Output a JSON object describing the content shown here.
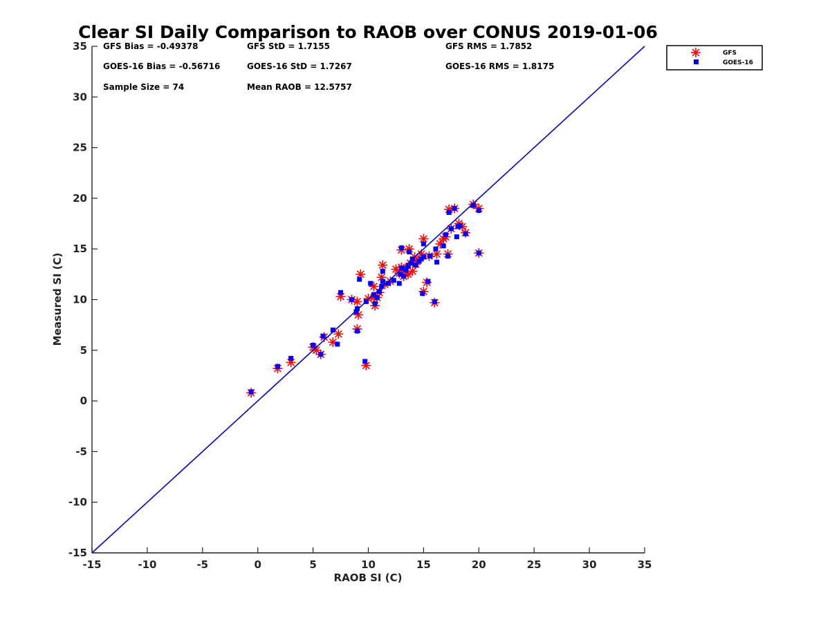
{
  "chart_data": {
    "type": "scatter",
    "title": "Clear SI Daily Comparison to RAOB over CONUS 2019-01-06",
    "xlabel": "RAOB SI (C)",
    "ylabel": "Measured SI (C)",
    "xlim": [
      -15,
      35
    ],
    "ylim": [
      -15,
      35
    ],
    "xticks": [
      "-15",
      "-10",
      "-5",
      "0",
      "5",
      "10",
      "15",
      "20",
      "25",
      "30",
      "35"
    ],
    "yticks": [
      "-15",
      "-10",
      "-5",
      "0",
      "5",
      "10",
      "15",
      "20",
      "25",
      "30",
      "35"
    ],
    "grid": false,
    "legend_position": "outside-top-right",
    "reference_line": {
      "name": "1:1 line",
      "x": [
        -15,
        35
      ],
      "y": [
        -15,
        35
      ],
      "color": "#0000cc"
    },
    "stats": [
      "GFS Bias = -0.49378",
      "GFS StD = 1.7155",
      "GFS RMS = 1.7852",
      "GOES-16 Bias = -0.56716",
      "GOES-16 StD = 1.7267",
      "GOES-16 RMS = 1.8175",
      "Sample Size = 74",
      "Mean RAOB = 12.5757"
    ],
    "series": [
      {
        "name": "GFS",
        "marker": "asterisk",
        "color": "#ff0000",
        "points": [
          [
            -0.6,
            0.8
          ],
          [
            1.8,
            3.2
          ],
          [
            3.0,
            3.8
          ],
          [
            5.0,
            5.3
          ],
          [
            5.3,
            5.0
          ],
          [
            5.7,
            4.6
          ],
          [
            6.0,
            6.3
          ],
          [
            6.8,
            5.8
          ],
          [
            7.3,
            6.6
          ],
          [
            7.5,
            10.3
          ],
          [
            8.5,
            10.0
          ],
          [
            9.0,
            7.1
          ],
          [
            9.0,
            9.8
          ],
          [
            9.1,
            8.5
          ],
          [
            9.3,
            12.5
          ],
          [
            9.8,
            3.5
          ],
          [
            10.0,
            10.1
          ],
          [
            10.5,
            11.3
          ],
          [
            10.6,
            9.4
          ],
          [
            10.8,
            10.2
          ],
          [
            11.0,
            10.7
          ],
          [
            11.2,
            12.2
          ],
          [
            11.3,
            13.4
          ],
          [
            11.5,
            11.5
          ],
          [
            12.0,
            11.8
          ],
          [
            12.5,
            13.0
          ],
          [
            13.0,
            13.2
          ],
          [
            13.0,
            14.9
          ],
          [
            13.2,
            12.3
          ],
          [
            13.4,
            12.8
          ],
          [
            13.6,
            12.5
          ],
          [
            13.7,
            15.0
          ],
          [
            13.8,
            13.6
          ],
          [
            14.0,
            12.8
          ],
          [
            14.2,
            14.2
          ],
          [
            14.5,
            13.9
          ],
          [
            14.8,
            14.5
          ],
          [
            15.0,
            16.0
          ],
          [
            15.0,
            10.8
          ],
          [
            15.3,
            11.7
          ],
          [
            15.5,
            14.3
          ],
          [
            16.0,
            9.7
          ],
          [
            16.2,
            14.5
          ],
          [
            16.5,
            15.5
          ],
          [
            16.8,
            16.0
          ],
          [
            17.0,
            16.2
          ],
          [
            17.2,
            14.5
          ],
          [
            17.3,
            18.9
          ],
          [
            17.5,
            17.0
          ],
          [
            17.8,
            19.0
          ],
          [
            18.2,
            17.5
          ],
          [
            18.5,
            17.2
          ],
          [
            18.8,
            16.6
          ],
          [
            19.5,
            19.4
          ],
          [
            20.0,
            19.0
          ],
          [
            20.0,
            14.6
          ],
          [
            10.5,
            10.2
          ],
          [
            12.8,
            12.6
          ],
          [
            14.3,
            13.5
          ]
        ]
      },
      {
        "name": "GOES-16",
        "marker": "square",
        "color": "#0000ff",
        "points": [
          [
            -0.6,
            0.9
          ],
          [
            1.8,
            3.4
          ],
          [
            3.0,
            4.2
          ],
          [
            5.0,
            5.5
          ],
          [
            5.7,
            4.6
          ],
          [
            5.9,
            6.4
          ],
          [
            6.8,
            7.0
          ],
          [
            7.2,
            5.6
          ],
          [
            7.5,
            10.7
          ],
          [
            8.5,
            10.0
          ],
          [
            8.9,
            8.8
          ],
          [
            9.0,
            9.1
          ],
          [
            9.0,
            6.9
          ],
          [
            9.2,
            12.0
          ],
          [
            9.7,
            3.9
          ],
          [
            9.8,
            9.8
          ],
          [
            10.2,
            11.6
          ],
          [
            10.6,
            9.6
          ],
          [
            10.8,
            10.2
          ],
          [
            11.0,
            10.8
          ],
          [
            11.2,
            11.3
          ],
          [
            11.3,
            11.8
          ],
          [
            11.3,
            12.8
          ],
          [
            11.8,
            11.6
          ],
          [
            12.8,
            11.6
          ],
          [
            12.9,
            12.5
          ],
          [
            13.0,
            15.1
          ],
          [
            13.0,
            13.1
          ],
          [
            13.2,
            12.3
          ],
          [
            13.4,
            12.9
          ],
          [
            13.6,
            13.3
          ],
          [
            13.7,
            14.7
          ],
          [
            13.9,
            13.6
          ],
          [
            14.0,
            14.0
          ],
          [
            14.3,
            13.4
          ],
          [
            14.6,
            13.8
          ],
          [
            14.8,
            14.0
          ],
          [
            14.9,
            10.6
          ],
          [
            15.0,
            15.5
          ],
          [
            15.0,
            14.2
          ],
          [
            15.4,
            11.8
          ],
          [
            15.6,
            14.3
          ],
          [
            16.0,
            9.8
          ],
          [
            16.1,
            15.0
          ],
          [
            16.2,
            13.7
          ],
          [
            16.8,
            15.3
          ],
          [
            17.0,
            16.4
          ],
          [
            17.2,
            14.3
          ],
          [
            17.3,
            18.6
          ],
          [
            17.5,
            17.0
          ],
          [
            17.8,
            19.0
          ],
          [
            18.0,
            16.2
          ],
          [
            18.1,
            17.2
          ],
          [
            18.3,
            17.3
          ],
          [
            18.8,
            16.5
          ],
          [
            19.5,
            19.3
          ],
          [
            20.0,
            18.8
          ],
          [
            20.0,
            14.6
          ],
          [
            12.3,
            11.9
          ],
          [
            10.5,
            10.5
          ]
        ]
      }
    ]
  },
  "legend": {
    "items": [
      {
        "label": "GFS",
        "marker": "asterisk",
        "color": "#ff0000"
      },
      {
        "label": "GOES-16",
        "marker": "square",
        "color": "#0000ff"
      }
    ]
  }
}
